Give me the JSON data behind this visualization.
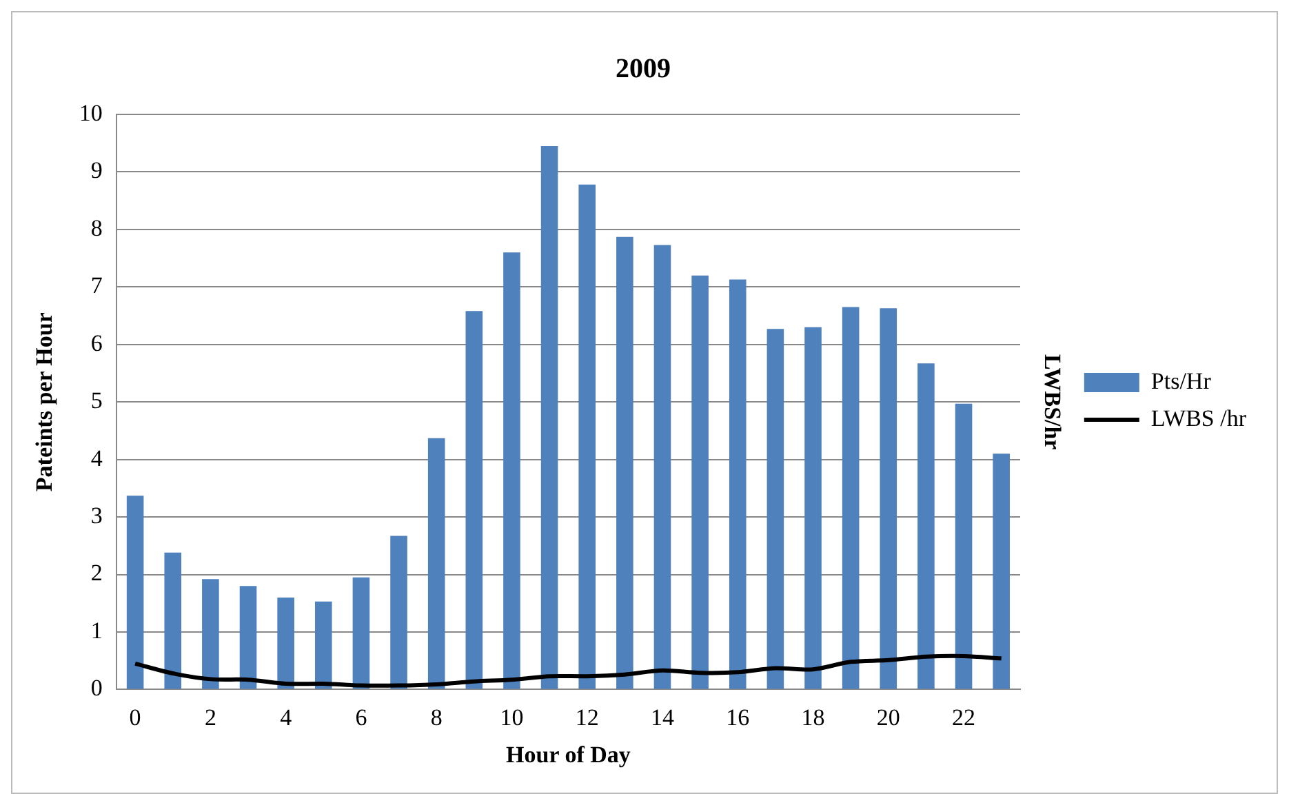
{
  "chart_data": {
    "type": "bar",
    "title": "2009",
    "xlabel": "Hour of Day",
    "ylabel": "Pateints per Hour",
    "y2label": "LWBS/hr",
    "categories": [
      "0",
      null,
      "2",
      null,
      "4",
      null,
      "6",
      null,
      "8",
      null,
      "10",
      null,
      "12",
      null,
      "14",
      null,
      "16",
      null,
      "18",
      null,
      "20",
      null,
      "22",
      null
    ],
    "series": [
      {
        "name": "Pts/Hr",
        "color": "#4f81bd",
        "values": [
          3.37,
          2.38,
          1.92,
          1.8,
          1.6,
          1.53,
          1.95,
          2.67,
          4.37,
          6.58,
          7.6,
          9.45,
          8.78,
          7.87,
          7.73,
          7.2,
          7.13,
          6.27,
          6.3,
          6.65,
          6.63,
          5.67,
          4.97,
          4.1
        ]
      },
      {
        "name": "LWBS /hr",
        "type": "line",
        "color": "#000000",
        "values": [
          0.45,
          0.28,
          0.18,
          0.17,
          0.1,
          0.1,
          0.07,
          0.07,
          0.09,
          0.14,
          0.17,
          0.23,
          0.23,
          0.26,
          0.33,
          0.29,
          0.3,
          0.37,
          0.35,
          0.48,
          0.51,
          0.57,
          0.58,
          0.54
        ]
      }
    ],
    "ylim": [
      0,
      10
    ],
    "yticks": [
      0,
      1,
      2,
      3,
      4,
      5,
      6,
      7,
      8,
      9,
      10
    ],
    "grid": "y",
    "legend": "right",
    "marker": "none"
  }
}
